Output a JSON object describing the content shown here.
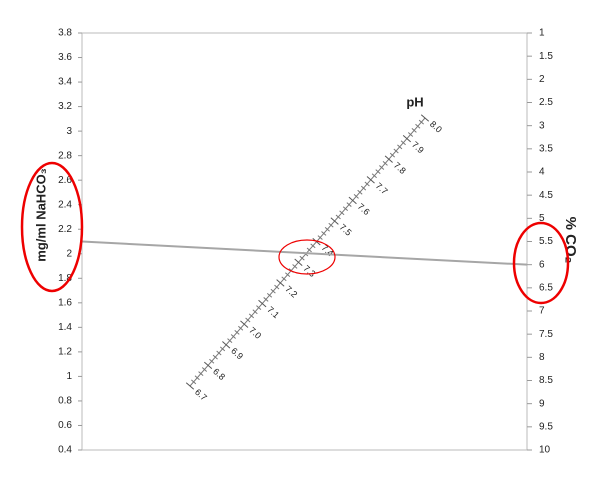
{
  "chart_data": {
    "type": "nomogram",
    "ylabel": "mg/ml NaHCO₃",
    "ylim": [
      0.4,
      3.8
    ],
    "yticks": [
      0.4,
      0.6,
      0.8,
      1,
      1.2,
      1.4,
      1.6,
      1.8,
      2,
      2.2,
      2.4,
      2.6,
      2.8,
      3,
      3.2,
      3.4,
      3.6,
      3.8
    ],
    "y2label": "% CO₂",
    "y2lim": [
      10,
      1
    ],
    "y2ticks": [
      1,
      1.5,
      2,
      2.5,
      3,
      3.5,
      4,
      4.5,
      5,
      5.5,
      6,
      6.5,
      7,
      7.5,
      8,
      8.5,
      9,
      9.5,
      10
    ],
    "ph_scale": {
      "label": "pH",
      "lim": [
        6.7,
        8.0
      ],
      "ticks": [
        6.7,
        6.8,
        6.9,
        {
          "value": 7,
          "label": "7.0"
        },
        7.1,
        7.2,
        7.3,
        7.4,
        7.5,
        7.6,
        7.7,
        7.8,
        7.9,
        {
          "value": 8,
          "label": "8.0"
        }
      ],
      "minor_ticks": [
        6.72,
        6.74,
        6.76,
        6.78,
        6.82,
        6.84,
        6.86,
        6.88,
        6.92,
        6.94,
        6.96,
        6.98,
        7.02,
        7.04,
        7.06,
        7.08,
        7.12,
        7.14,
        7.16,
        7.18,
        7.22,
        7.24,
        7.26,
        7.28,
        7.32,
        7.34,
        7.36,
        7.38,
        7.42,
        7.44,
        7.46,
        7.48,
        7.52,
        7.54,
        7.56,
        7.58,
        7.62,
        7.64,
        7.66,
        7.68,
        7.72,
        7.74,
        7.76,
        7.78,
        7.82,
        7.84,
        7.86,
        7.88,
        7.92,
        7.94,
        7.96,
        7.98
      ]
    },
    "reading": {
      "y": 2.1,
      "y2": 6,
      "color": "#a6a6a6"
    }
  }
}
